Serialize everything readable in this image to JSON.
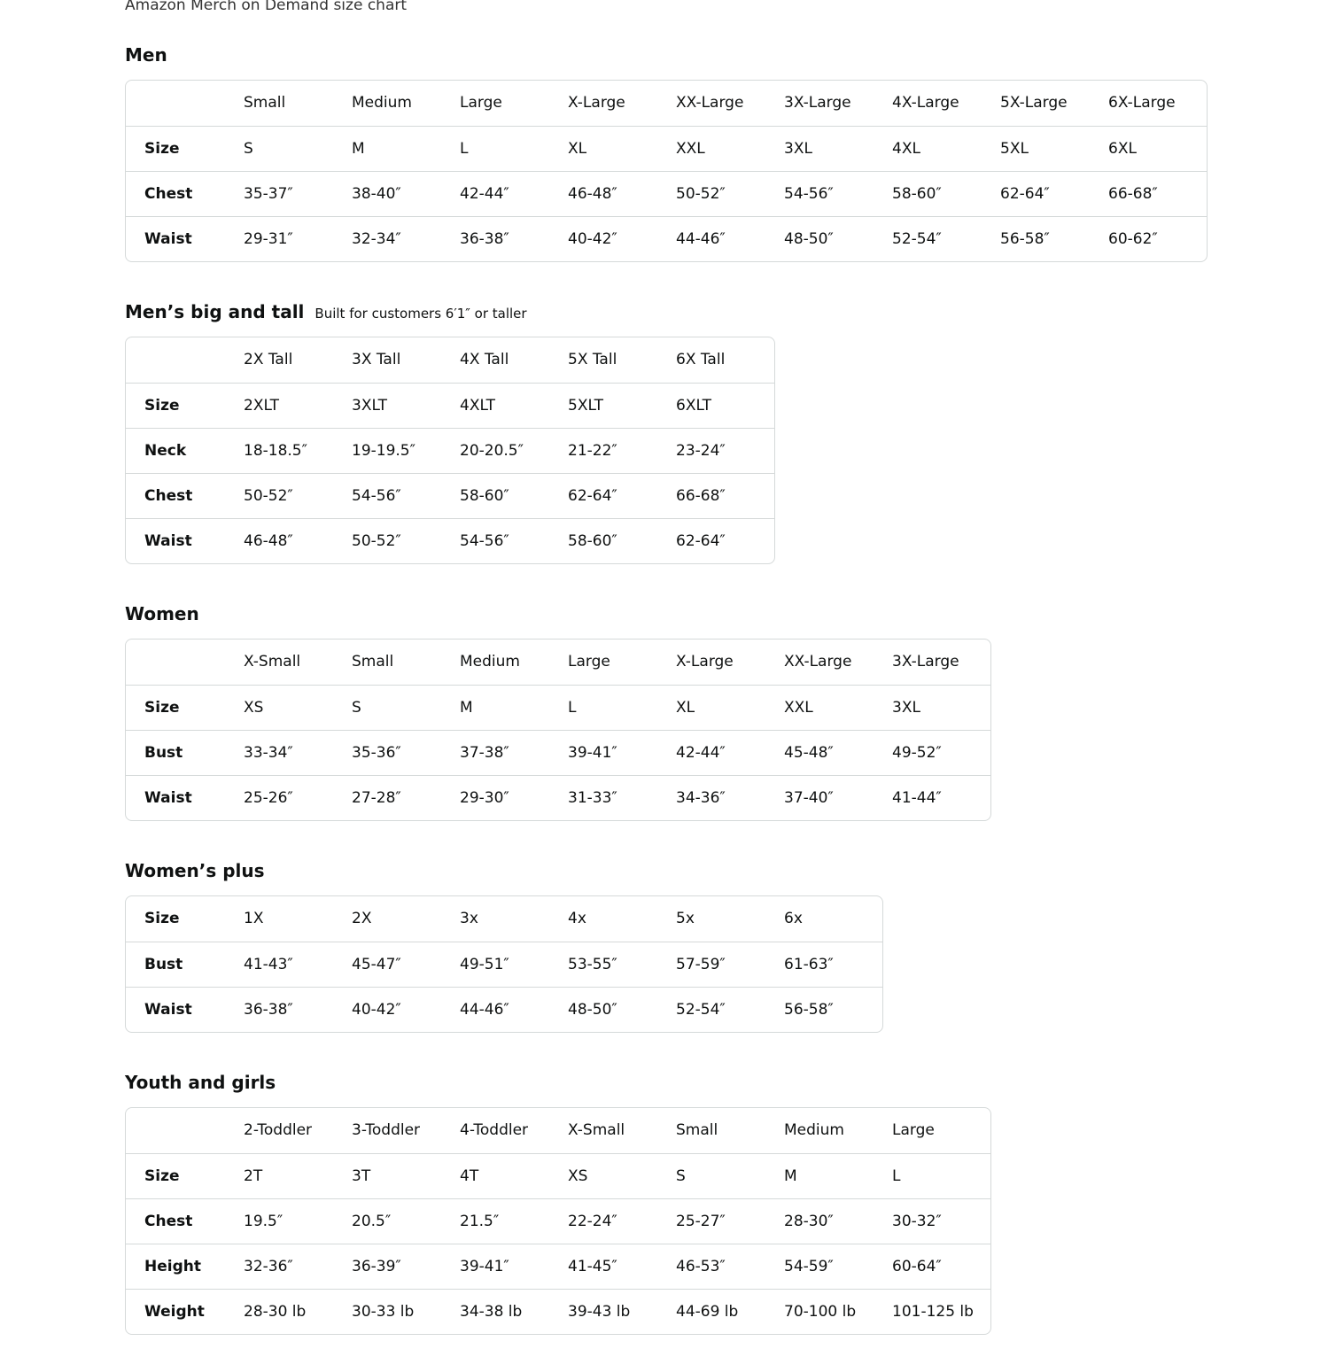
{
  "caption": "Amazon Merch on Demand size chart",
  "sections": [
    {
      "title": "Men",
      "subtitle": "",
      "rows": [
        [
          "",
          "Small",
          "Medium",
          "Large",
          "X-Large",
          "XX-Large",
          "3X-Large",
          "4X-Large",
          "5X-Large",
          "6X-Large"
        ],
        [
          "Size",
          "S",
          "M",
          "L",
          "XL",
          "XXL",
          "3XL",
          "4XL",
          "5XL",
          "6XL"
        ],
        [
          "Chest",
          "35-37″",
          "38-40″",
          "42-44″",
          "46-48″",
          "50-52″",
          "54-56″",
          "58-60″",
          "62-64″",
          "66-68″"
        ],
        [
          "Waist",
          "29-31″",
          "32-34″",
          "36-38″",
          "40-42″",
          "44-46″",
          "48-50″",
          "52-54″",
          "56-58″",
          "60-62″"
        ]
      ]
    },
    {
      "title": "Men’s big and tall",
      "subtitle": "Built for customers 6′1″ or taller",
      "rows": [
        [
          "",
          "2X Tall",
          "3X Tall",
          "4X Tall",
          "5X Tall",
          "6X Tall"
        ],
        [
          "Size",
          "2XLT",
          "3XLT",
          "4XLT",
          "5XLT",
          "6XLT"
        ],
        [
          "Neck",
          "18-18.5″",
          "19-19.5″",
          "20-20.5″",
          "21-22″",
          "23-24″"
        ],
        [
          "Chest",
          "50-52″",
          "54-56″",
          "58-60″",
          "62-64″",
          "66-68″"
        ],
        [
          "Waist",
          "46-48″",
          "50-52″",
          "54-56″",
          "58-60″",
          "62-64″"
        ]
      ]
    },
    {
      "title": "Women",
      "subtitle": "",
      "rows": [
        [
          "",
          "X-Small",
          "Small",
          "Medium",
          "Large",
          "X-Large",
          "XX-Large",
          "3X-Large"
        ],
        [
          "Size",
          "XS",
          "S",
          "M",
          "L",
          "XL",
          "XXL",
          "3XL"
        ],
        [
          "Bust",
          "33-34″",
          "35-36″",
          "37-38″",
          "39-41″",
          "42-44″",
          "45-48″",
          "49-52″"
        ],
        [
          "Waist",
          "25-26″",
          "27-28″",
          "29-30″",
          "31-33″",
          "34-36″",
          "37-40″",
          "41-44″"
        ]
      ]
    },
    {
      "title": "Women’s plus",
      "subtitle": "",
      "rows": [
        [
          "Size",
          "1X",
          "2X",
          "3x",
          "4x",
          "5x",
          "6x"
        ],
        [
          "Bust",
          "41-43″",
          "45-47″",
          "49-51″",
          "53-55″",
          "57-59″",
          "61-63″"
        ],
        [
          "Waist",
          "36-38″",
          "40-42″",
          "44-46″",
          "48-50″",
          "52-54″",
          "56-58″"
        ]
      ]
    },
    {
      "title": "Youth and girls",
      "subtitle": "",
      "rows": [
        [
          "",
          "2-Toddler",
          "3-Toddler",
          "4-Toddler",
          "X-Small",
          "Small",
          "Medium",
          "Large"
        ],
        [
          "Size",
          "2T",
          "3T",
          "4T",
          "XS",
          "S",
          "M",
          "L"
        ],
        [
          "Chest",
          "19.5″",
          "20.5″",
          "21.5″",
          "22-24″",
          "25-27″",
          "28-30″",
          "30-32″"
        ],
        [
          "Height",
          "32-36″",
          "36-39″",
          "39-41″",
          "41-45″",
          "46-53″",
          "54-59″",
          "60-64″"
        ],
        [
          "Weight",
          "28-30 lb",
          "30-33 lb",
          "34-38 lb",
          "39-43 lb",
          "44-69 lb",
          "70-100 lb",
          "101-125 lb"
        ]
      ]
    }
  ]
}
